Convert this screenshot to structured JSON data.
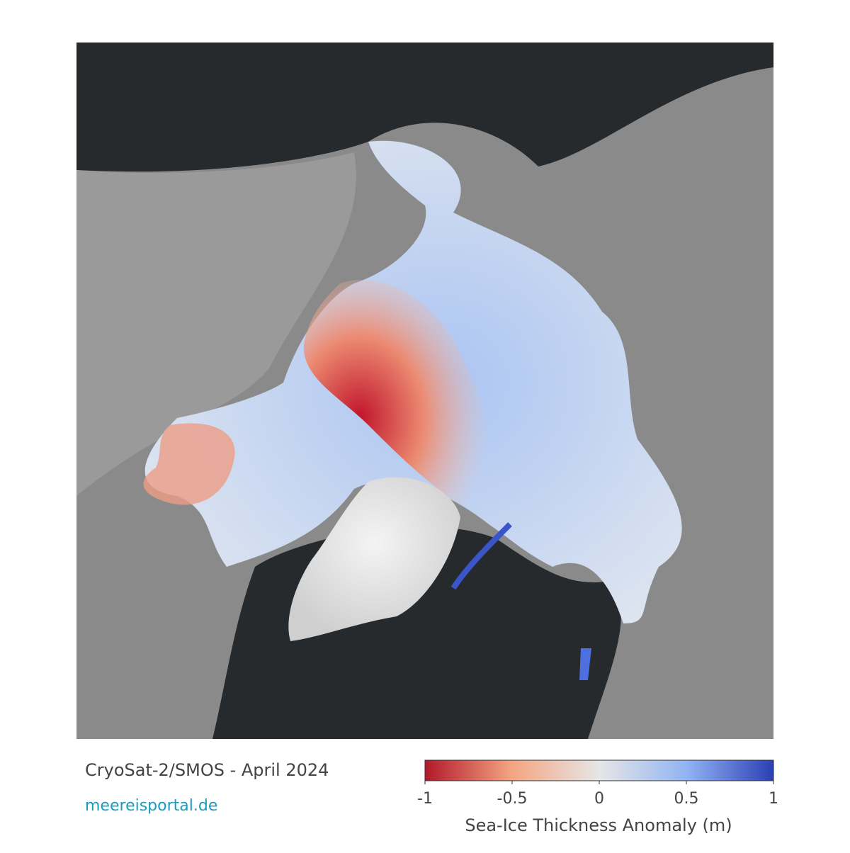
{
  "caption": {
    "title": "CryoSat-2/SMOS - April 2024",
    "source": "meereisportal.de"
  },
  "colorbar": {
    "label": "Sea-Ice Thickness Anomaly (m)",
    "lim": [
      -1,
      1
    ],
    "ticks": [
      -1,
      -0.5,
      0,
      0.5,
      1
    ],
    "colors": [
      "#b2182b",
      "#f4a582",
      "#e6e6e6",
      "#92b4f4",
      "#2c3fb5"
    ]
  }
}
